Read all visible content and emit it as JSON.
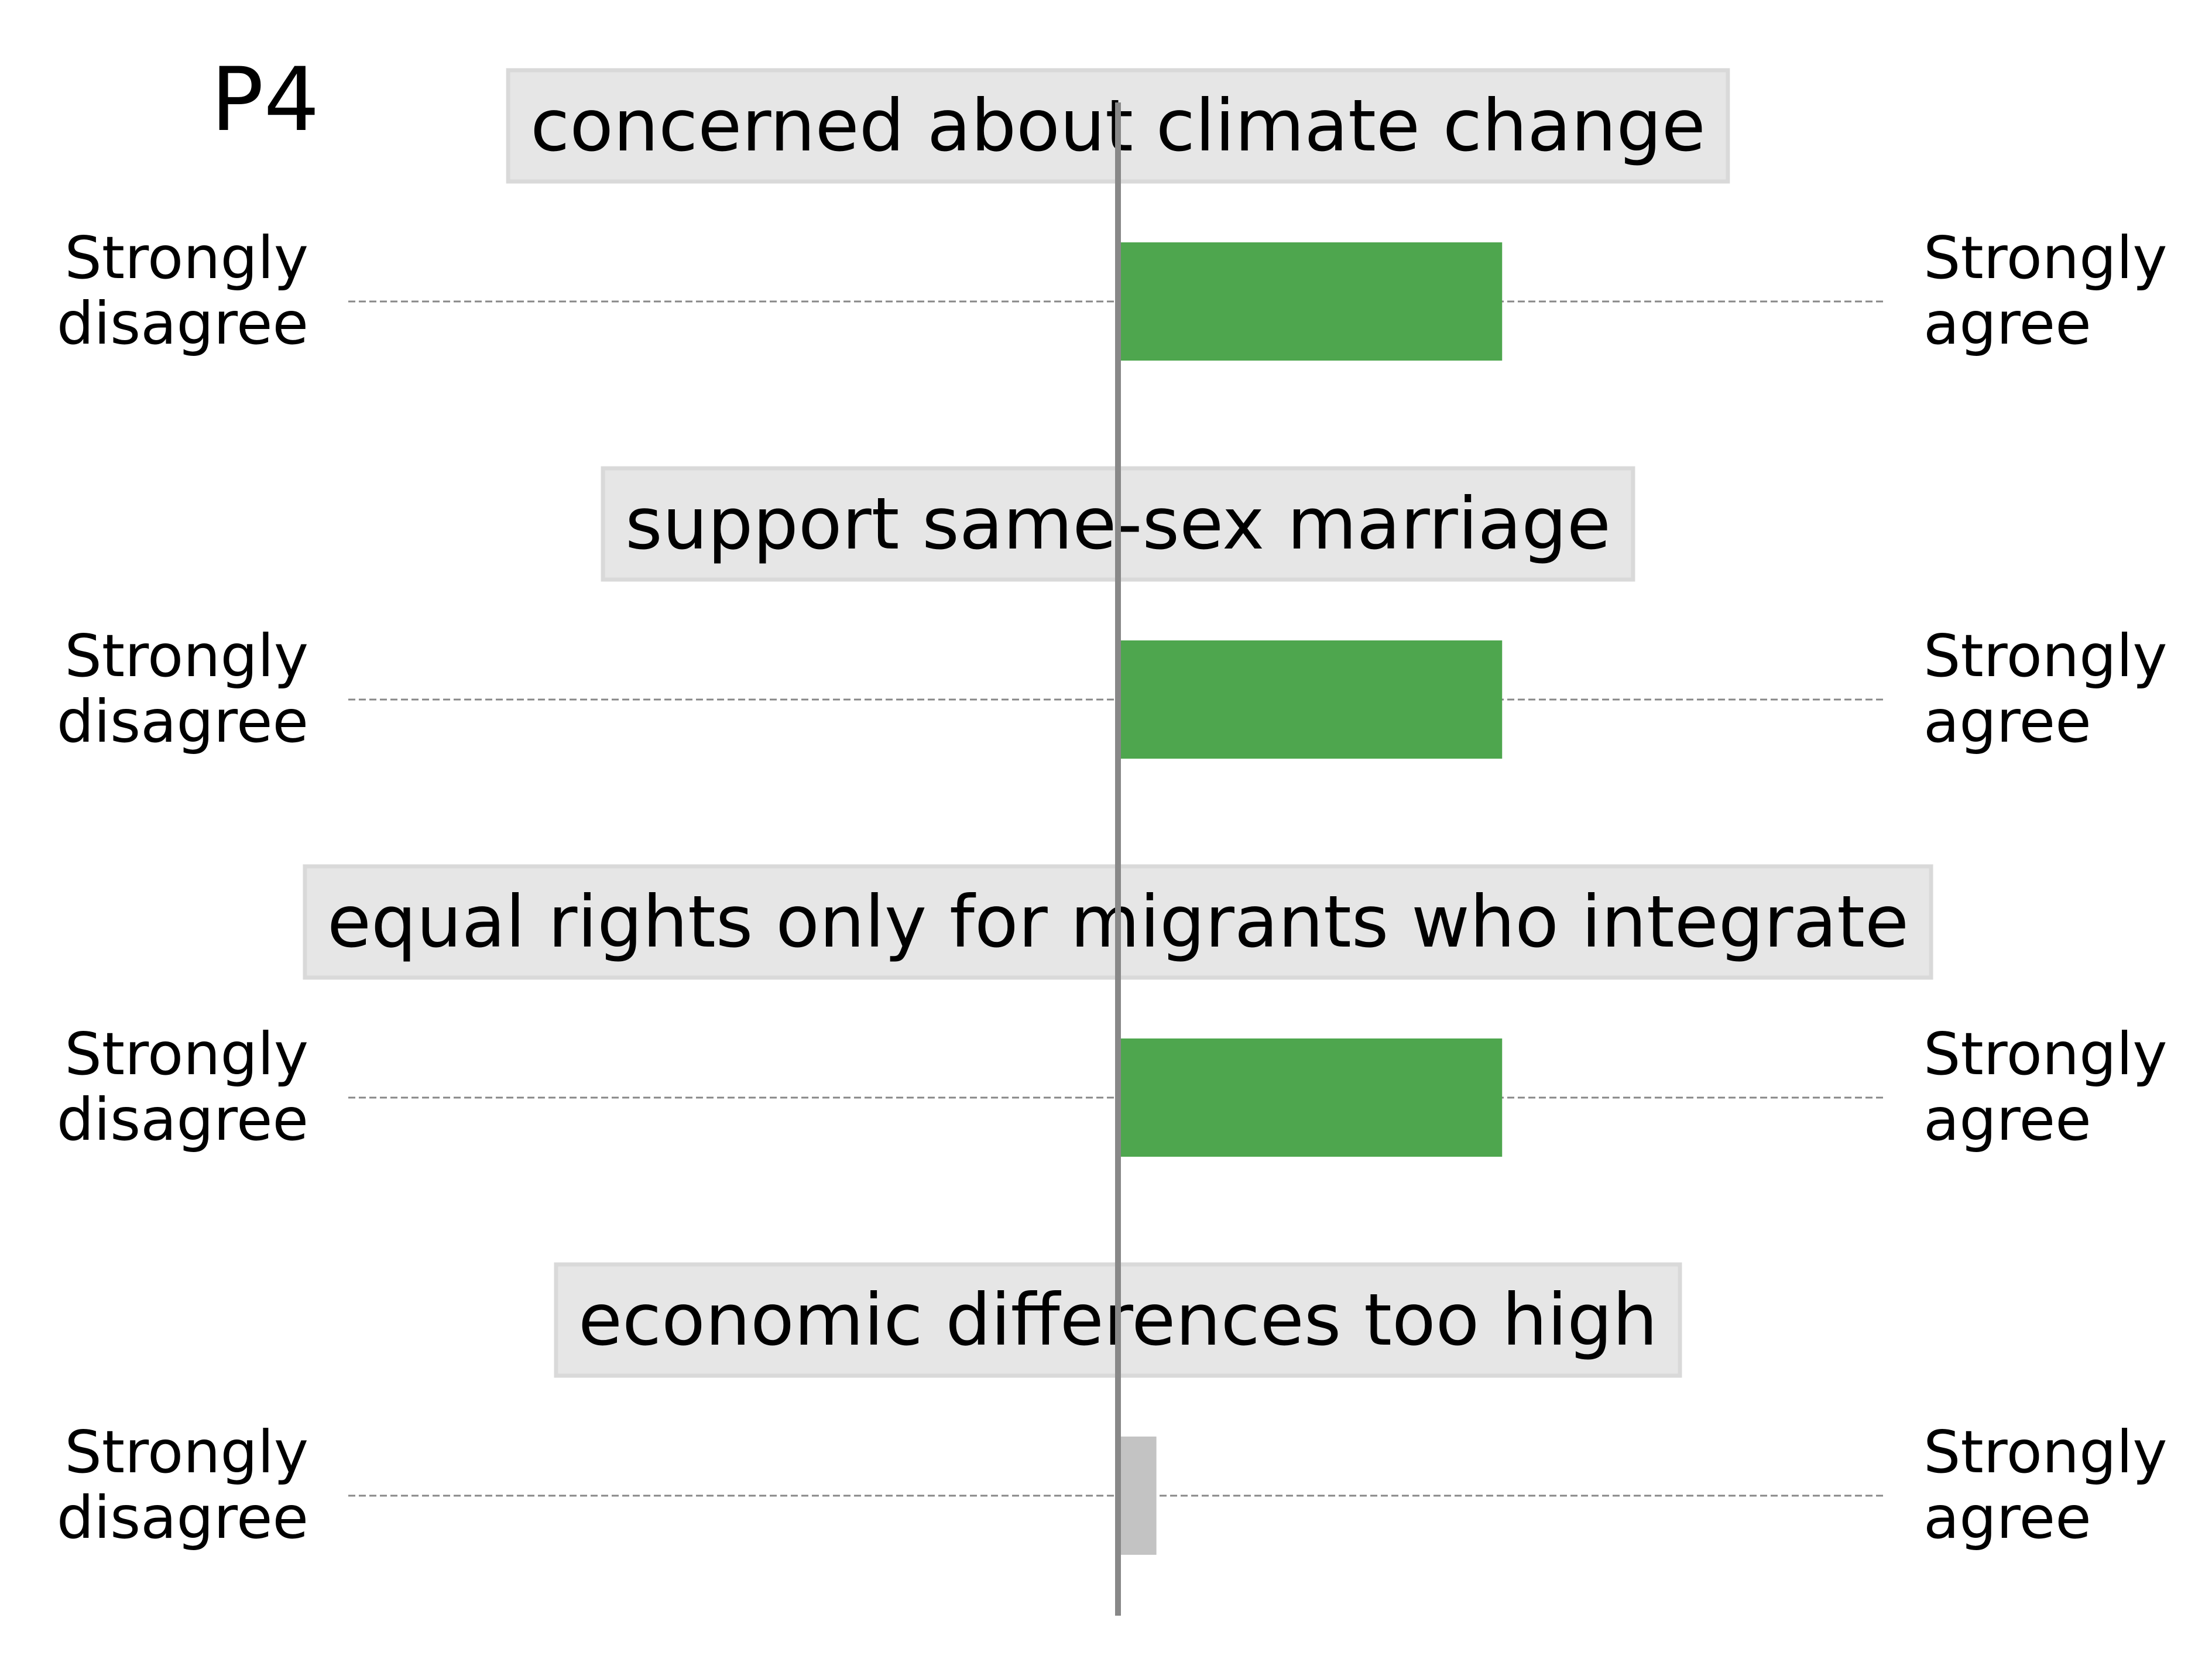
{
  "panel_label": "P4",
  "colors": {
    "agree_bar": "#4ea64e",
    "neutral_bar": "#c3c3c3",
    "box_fill": "#e6e6e6",
    "center_line": "#888888"
  },
  "chart_data": {
    "type": "bar",
    "orientation": "horizontal-diverging",
    "xlim": [
      -1,
      1
    ],
    "scale_left_label": "Strongly\ndisagree",
    "scale_right_label": "Strongly\nagree",
    "grid": false,
    "rows": [
      {
        "statement": "concerned about climate change",
        "value": 0.5,
        "color": "#4ea64e"
      },
      {
        "statement": "support same-sex marriage",
        "value": 0.5,
        "color": "#4ea64e"
      },
      {
        "statement": "equal rights only for migrants who integrate",
        "value": 0.5,
        "color": "#4ea64e"
      },
      {
        "statement": "economic differences too high",
        "value": 0.05,
        "color": "#c3c3c3"
      }
    ]
  }
}
